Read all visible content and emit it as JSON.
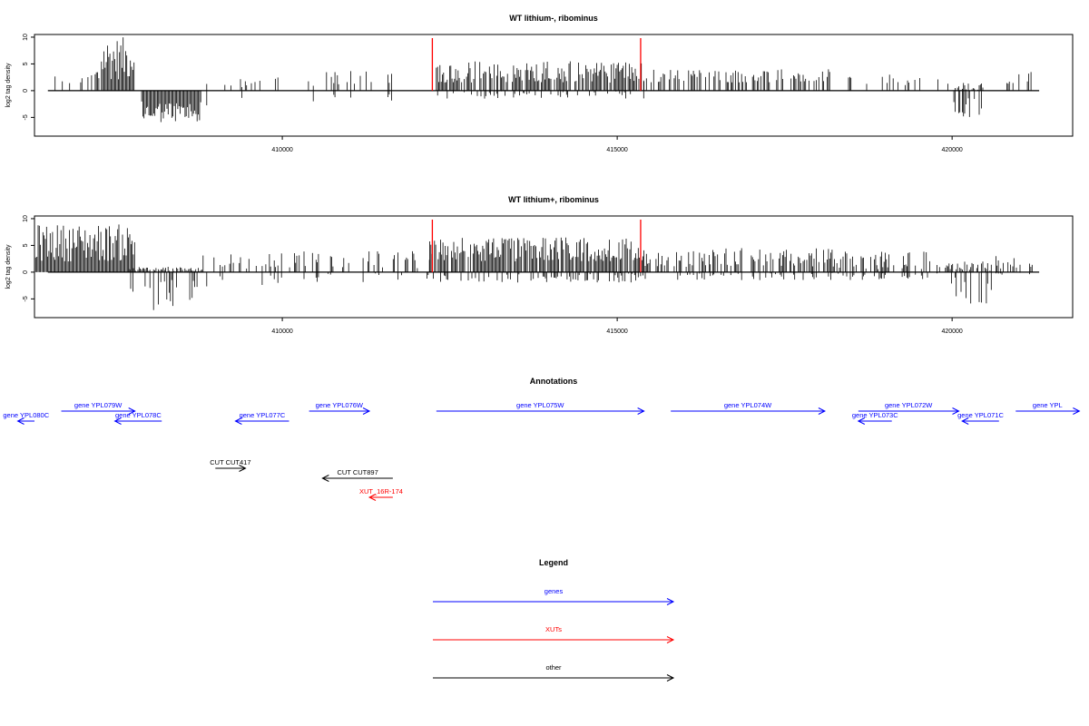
{
  "chart_data": [
    {
      "type": "bar",
      "title": "WT lithium-, ribominus",
      "xlabel": "",
      "ylabel": "log2 tag density",
      "xlim": [
        406300,
        421800
      ],
      "ylim": [
        -8.5,
        10.5
      ],
      "xticks": [
        410000,
        415000,
        420000
      ],
      "yticks": [
        -5,
        0,
        5,
        10
      ],
      "markers": [
        {
          "x": 412240,
          "color": "#ff0000"
        },
        {
          "x": 415350,
          "color": "#ff0000"
        }
      ],
      "segments": [
        {
          "x0": 406500,
          "x1": 406900,
          "pos": [
            0,
            3
          ],
          "neg": [
            0,
            0
          ],
          "density": 0.2
        },
        {
          "x0": 406900,
          "x1": 407300,
          "pos": [
            1,
            4.5
          ],
          "neg": [
            0,
            0
          ],
          "density": 0.4
        },
        {
          "x0": 407300,
          "x1": 407800,
          "pos": [
            2,
            10
          ],
          "neg": [
            0,
            0
          ],
          "density": 1.0
        },
        {
          "x0": 407900,
          "x1": 408800,
          "pos": [
            0,
            0
          ],
          "neg": [
            2,
            6
          ],
          "density": 1.0
        },
        {
          "x0": 408800,
          "x1": 410000,
          "pos": [
            0.5,
            2.5
          ],
          "neg": [
            0.5,
            3
          ],
          "density": 0.25
        },
        {
          "x0": 410300,
          "x1": 411800,
          "pos": [
            0.5,
            4
          ],
          "neg": [
            0.5,
            2
          ],
          "density": 0.2
        },
        {
          "x0": 412300,
          "x1": 415400,
          "pos": [
            1.5,
            5.5
          ],
          "neg": [
            0,
            1.5
          ],
          "density": 0.9
        },
        {
          "x0": 415400,
          "x1": 418200,
          "pos": [
            1.5,
            4
          ],
          "neg": [
            0,
            0
          ],
          "density": 0.45
        },
        {
          "x0": 418400,
          "x1": 419800,
          "pos": [
            1,
            3
          ],
          "neg": [
            0,
            0
          ],
          "density": 0.3
        },
        {
          "x0": 419900,
          "x1": 420500,
          "pos": [
            0,
            1.5
          ],
          "neg": [
            1,
            5
          ],
          "density": 0.5
        },
        {
          "x0": 420800,
          "x1": 421300,
          "pos": [
            1,
            3.5
          ],
          "neg": [
            0,
            0
          ],
          "density": 0.3
        }
      ]
    },
    {
      "type": "bar",
      "title": "WT lithium+, ribominus",
      "xlabel": "",
      "ylabel": "log2 tag density",
      "xlim": [
        406300,
        421800
      ],
      "ylim": [
        -8.5,
        10.5
      ],
      "xticks": [
        410000,
        415000,
        420000
      ],
      "yticks": [
        -5,
        0,
        5,
        10
      ],
      "markers": [
        {
          "x": 412240,
          "color": "#ff0000"
        },
        {
          "x": 415350,
          "color": "#ff0000"
        }
      ],
      "segments": [
        {
          "x0": 406300,
          "x1": 407800,
          "pos": [
            2,
            9
          ],
          "neg": [
            0,
            0
          ],
          "density": 1.0
        },
        {
          "x0": 407700,
          "x1": 408800,
          "pos": [
            0,
            1
          ],
          "neg": [
            1,
            8
          ],
          "density": 1.0
        },
        {
          "x0": 408800,
          "x1": 410000,
          "pos": [
            0.5,
            3.5
          ],
          "neg": [
            0.5,
            3
          ],
          "density": 0.45
        },
        {
          "x0": 410000,
          "x1": 412200,
          "pos": [
            0.5,
            4
          ],
          "neg": [
            0,
            2
          ],
          "density": 0.35
        },
        {
          "x0": 412200,
          "x1": 415400,
          "pos": [
            2,
            6.5
          ],
          "neg": [
            0,
            2
          ],
          "density": 1.0
        },
        {
          "x0": 415400,
          "x1": 418300,
          "pos": [
            1,
            4.5
          ],
          "neg": [
            0,
            1.5
          ],
          "density": 0.7
        },
        {
          "x0": 418300,
          "x1": 419900,
          "pos": [
            0.5,
            4
          ],
          "neg": [
            0,
            1.5
          ],
          "density": 0.5
        },
        {
          "x0": 419900,
          "x1": 420600,
          "pos": [
            0,
            2
          ],
          "neg": [
            1,
            6
          ],
          "density": 0.8
        },
        {
          "x0": 420600,
          "x1": 421300,
          "pos": [
            0.5,
            3
          ],
          "neg": [
            0,
            1
          ],
          "density": 0.5
        }
      ]
    }
  ],
  "annotations": {
    "title": "Annotations",
    "features": [
      {
        "label": "gene YPL080C",
        "start": 406300,
        "end": 406050,
        "row": 1,
        "color": "#0000ff"
      },
      {
        "label": "gene YPL079W",
        "start": 406700,
        "end": 407800,
        "row": 0,
        "color": "#0000ff"
      },
      {
        "label": "gene YPL078C",
        "start": 408200,
        "end": 407500,
        "row": 1,
        "color": "#0000ff"
      },
      {
        "label": "gene YPL077C",
        "start": 410100,
        "end": 409300,
        "row": 1,
        "color": "#0000ff"
      },
      {
        "label": "gene YPL076W",
        "start": 410400,
        "end": 411300,
        "row": 0,
        "color": "#0000ff"
      },
      {
        "label": "gene YPL075W",
        "start": 412300,
        "end": 415400,
        "row": 0,
        "color": "#0000ff"
      },
      {
        "label": "gene YPL074W",
        "start": 415800,
        "end": 418100,
        "row": 0,
        "color": "#0000ff"
      },
      {
        "label": "gene YPL073C",
        "start": 419100,
        "end": 418600,
        "row": 1,
        "color": "#0000ff"
      },
      {
        "label": "gene YPL072W",
        "start": 418600,
        "end": 420100,
        "row": 0,
        "color": "#0000ff"
      },
      {
        "label": "gene YPL071C",
        "start": 420700,
        "end": 420150,
        "row": 1,
        "color": "#0000ff"
      },
      {
        "label": "gene YPL",
        "start": 420950,
        "end": 421900,
        "row": 0,
        "color": "#0000ff"
      },
      {
        "label": "CUT CUT417",
        "start": 409000,
        "end": 409450,
        "row": 3,
        "color": "#000000"
      },
      {
        "label": "CUT CUT897",
        "start": 411650,
        "end": 410600,
        "row": 4,
        "color": "#000000"
      },
      {
        "label": "XUT_16R-174",
        "start": 411650,
        "end": 411300,
        "row": 5,
        "color": "#ff0000"
      }
    ]
  },
  "legend": {
    "title": "Legend",
    "items": [
      {
        "label": "genes",
        "color": "#0000ff"
      },
      {
        "label": "XUTs",
        "color": "#ff0000"
      },
      {
        "label": "other",
        "color": "#000000"
      }
    ]
  }
}
